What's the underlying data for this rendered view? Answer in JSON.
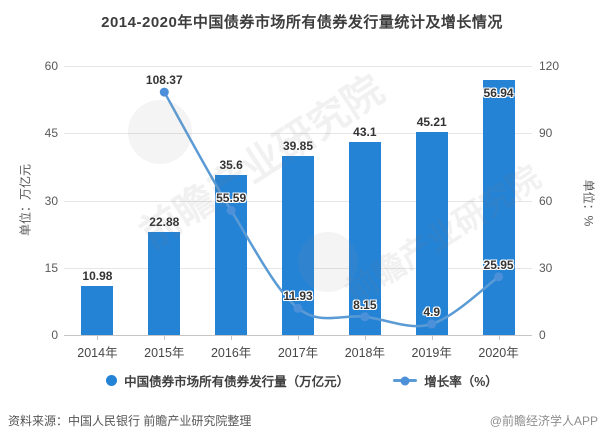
{
  "title": "2014-2020年中国债券市场所有债券发行量统计及增长情况",
  "colors": {
    "bar": "#2583d6",
    "line": "#5b9bd5",
    "marker": "#4b90d8"
  },
  "chart_data": {
    "type": "bar+line",
    "categories": [
      "2014年",
      "2015年",
      "2016年",
      "2017年",
      "2018年",
      "2019年",
      "2020年"
    ],
    "series": [
      {
        "name": "中国债券市场所有债券发行量（万亿元）",
        "type": "bar",
        "axis": "left",
        "values": [
          10.98,
          22.88,
          35.6,
          39.85,
          43.1,
          45.21,
          56.94
        ]
      },
      {
        "name": "增长率（%）",
        "type": "line",
        "axis": "right",
        "values": [
          null,
          108.37,
          55.59,
          11.93,
          8.15,
          4.9,
          25.95
        ]
      }
    ],
    "left_axis": {
      "name": "单位：万亿元",
      "ticks": [
        0,
        15,
        30,
        45,
        60
      ],
      "max": 60
    },
    "right_axis": {
      "name": "单位：%",
      "ticks": [
        0,
        30,
        60,
        90,
        120
      ],
      "max": 120
    },
    "grid": true,
    "legend_position": "bottom"
  },
  "footer": {
    "source": "资料来源：中国人民银行 前瞻产业研究院整理",
    "credit": "@前瞻经济学人APP"
  },
  "watermark": {
    "text": "前瞻产业研究院"
  }
}
